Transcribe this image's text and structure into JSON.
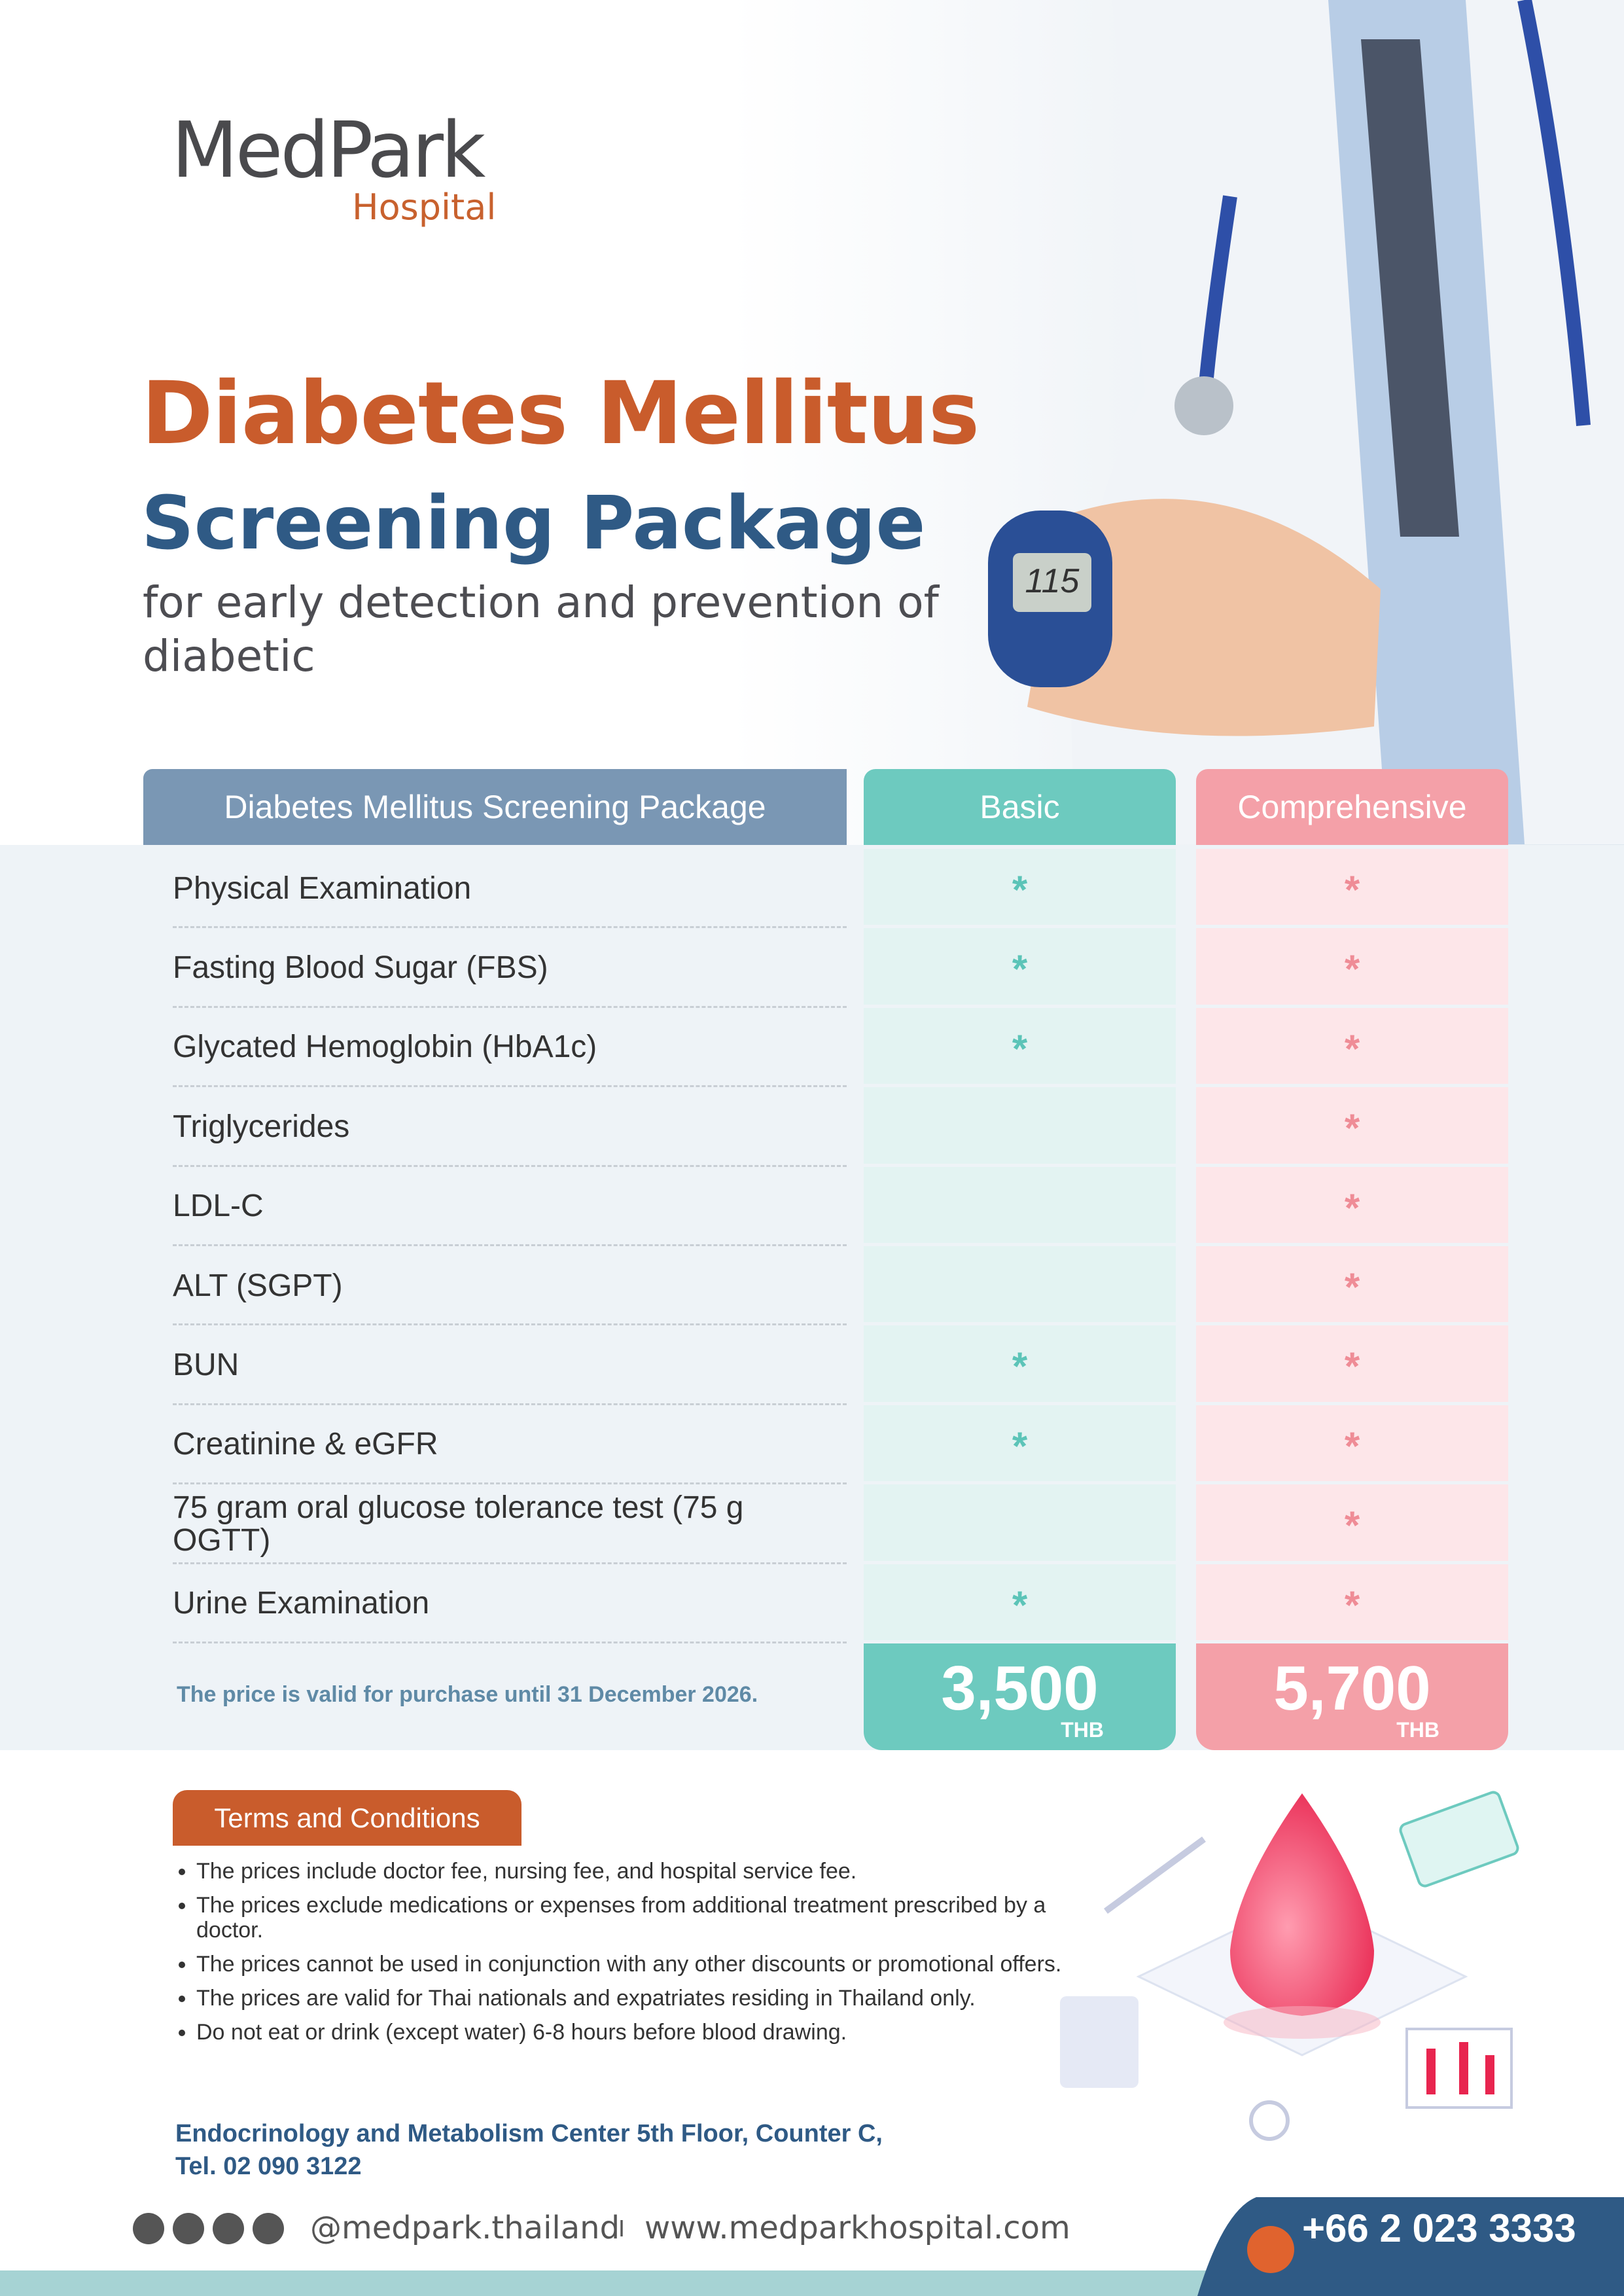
{
  "logo": {
    "name": "MedPark",
    "subtitle": "Hospital"
  },
  "header": {
    "title_line1": "Diabetes Mellitus",
    "title_line2": "Screening Package",
    "subtitle": "for early detection and prevention of diabetic",
    "meter_reading": "115"
  },
  "table": {
    "header": [
      "Diabetes Mellitus Screening Package",
      "Basic",
      "Comprehensive"
    ],
    "rows": [
      {
        "name": "Physical Examination",
        "basic": "*",
        "comprehensive": "*"
      },
      {
        "name": "Fasting Blood Sugar (FBS)",
        "basic": "*",
        "comprehensive": "*"
      },
      {
        "name": "Glycated Hemoglobin (HbA1c)",
        "basic": "*",
        "comprehensive": "*"
      },
      {
        "name": "Triglycerides",
        "comprehensive": "*"
      },
      {
        "name": "LDL-C",
        "comprehensive": "*"
      },
      {
        "name": "ALT (SGPT)",
        "comprehensive": "*"
      },
      {
        "name": "BUN",
        "basic": "*",
        "comprehensive": "*"
      },
      {
        "name": "Creatinine & eGFR",
        "basic": "*",
        "comprehensive": "*"
      },
      {
        "name": "75 gram oral glucose tolerance test (75 g OGTT)",
        "comprehensive": "*"
      },
      {
        "name": "Urine Examination",
        "basic": "*",
        "comprehensive": "*"
      }
    ],
    "validity": "The price is valid for purchase until 31 December 2026.",
    "prices": [
      {
        "amount": "3,500",
        "currency": "THB"
      },
      {
        "amount": "5,700",
        "currency": "THB"
      }
    ]
  },
  "terms": {
    "title": "Terms and Conditions",
    "items": [
      "The prices include doctor fee, nursing fee, and hospital service fee.",
      "The prices exclude medications or expenses from additional treatment prescribed by a doctor.",
      "The prices cannot be used in conjunction with any other discounts or promotional offers.",
      "The prices are valid for Thai nationals and expatriates residing in Thailand only.",
      "Do not eat or drink (except water) 6-8 hours before blood drawing."
    ]
  },
  "location": {
    "line1": "Endocrinology and Metabolism Center 5th Floor, Counter C,",
    "line2": "Tel. 02 090 3122"
  },
  "footer": {
    "social": "@medpark.thailand",
    "separator": "I",
    "website": "www.medparkhospital.com",
    "phone": "+66 2 023 3333"
  }
}
